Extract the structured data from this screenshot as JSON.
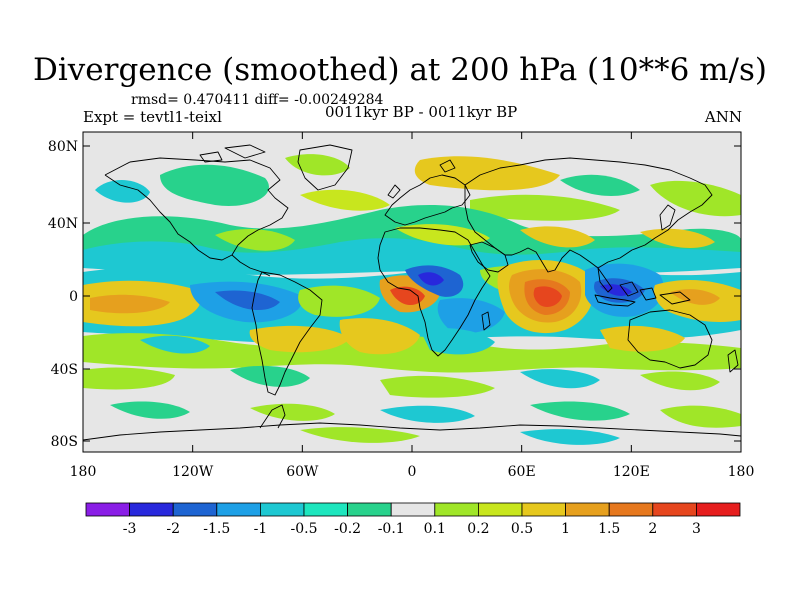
{
  "title": "Divergence (smoothed) at 200 hPa (10**6 m/s)",
  "stats": "rmsd= 0.470411 diff= -0.00249284",
  "experiment": "Expt = tevtl1-teixl",
  "period": "0011kyr BP - 0011kyr BP",
  "season": "ANN",
  "axes": {
    "lat_labels": [
      "80N",
      "40N",
      "0",
      "40S",
      "80S"
    ],
    "lon_labels": [
      "180",
      "120W",
      "60W",
      "0",
      "60E",
      "120E",
      "180"
    ]
  },
  "colorbar": {
    "colors": [
      "#8a1ee6",
      "#2828dc",
      "#1e64d2",
      "#1ea0e6",
      "#1ec8d2",
      "#1ee6be",
      "#28d28c",
      "#e6e6e6",
      "#a0e628",
      "#c8e61e",
      "#e6c81e",
      "#e6a01e",
      "#e6781e",
      "#e6461e",
      "#e61e1e"
    ],
    "labels": [
      "-3",
      "-2",
      "-1.5",
      "-1",
      "-0.5",
      "-0.2",
      "-0.1",
      "0.1",
      "0.2",
      "0.5",
      "1",
      "1.5",
      "2",
      "3"
    ]
  },
  "map_background": "#e6e6e6"
}
